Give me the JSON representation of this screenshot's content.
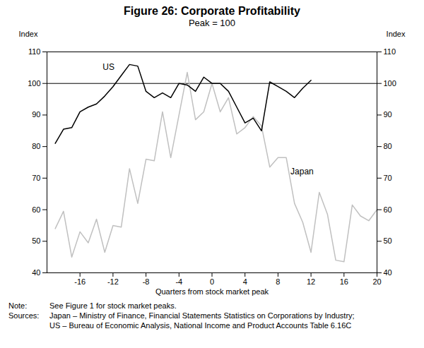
{
  "chart_data": {
    "type": "line",
    "title": "Figure 26: Corporate Profitability",
    "subtitle": "Peak = 100",
    "x_label": "Quarters from stock market peak",
    "y_label": "Index",
    "x": [
      -19,
      -18,
      -17,
      -16,
      -15,
      -14,
      -13,
      -12,
      -11,
      -10,
      -9,
      -8,
      -7,
      -6,
      -5,
      -4,
      -3,
      -2,
      -1,
      0,
      1,
      2,
      3,
      4,
      5,
      6,
      7,
      8,
      9,
      10,
      11,
      12,
      13,
      14,
      15,
      16,
      17,
      18,
      19,
      20
    ],
    "series": [
      {
        "name": "US",
        "color": "#000000",
        "values": [
          81,
          85.5,
          86,
          91,
          92.5,
          93.5,
          96,
          99,
          102.5,
          106,
          105.5,
          97.5,
          95.5,
          97,
          95.5,
          100,
          99.5,
          97.5,
          102,
          100,
          100,
          97.5,
          92.5,
          87.5,
          89,
          85,
          100.5,
          99,
          97.5,
          95.5,
          98.5,
          101,
          null,
          null,
          null,
          null,
          null,
          null,
          null,
          null
        ]
      },
      {
        "name": "Japan",
        "color": "#c0c0c0",
        "values": [
          54,
          59.5,
          45,
          53,
          49.5,
          57,
          46.5,
          55,
          54.5,
          73,
          62,
          76,
          75.5,
          91,
          76.5,
          90,
          103.5,
          88.5,
          91,
          100,
          91,
          95.5,
          84,
          86,
          89.5,
          86.5,
          73.5,
          76.5,
          76.5,
          62,
          56,
          46.5,
          65.5,
          58.5,
          44,
          43.5,
          61.5,
          58,
          56.5,
          60
        ]
      }
    ],
    "xlim": [
      -20,
      20
    ],
    "xticks": [
      -16,
      -12,
      -8,
      -4,
      0,
      4,
      8,
      12,
      16,
      20
    ],
    "ylim": [
      40,
      110
    ],
    "yticks": [
      40,
      50,
      60,
      70,
      80,
      90,
      100,
      110
    ],
    "reference_lines": [
      100
    ],
    "grid": false,
    "notes": [
      {
        "label": "Note:",
        "text": "See Figure 1 for stock market peaks."
      },
      {
        "label": "Sources:",
        "text": "Japan – Ministry of Finance, Financial Statements Statistics on Corporations by Industry;"
      },
      {
        "label": "",
        "text": "US – Bureau of Economic Analysis, National Income and Product Accounts Table 6.16C"
      }
    ]
  }
}
